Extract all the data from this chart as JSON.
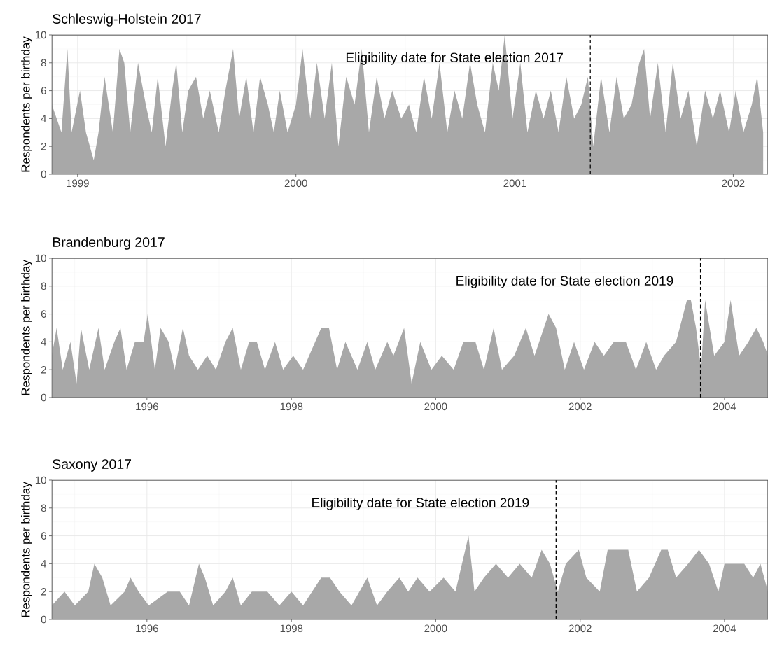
{
  "chart_data": [
    {
      "type": "area",
      "title": "Schleswig-Holstein 2017",
      "ylabel": "Respondents per birthday",
      "color": "#a8a8a8",
      "grid": true,
      "xlim": [
        "1998-11-19",
        "2002-02-28"
      ],
      "ylim": [
        0,
        10
      ],
      "yticks": [
        0,
        2,
        4,
        6,
        8,
        10
      ],
      "xticks": [
        {
          "value": "1999-01-01",
          "label": "1999"
        },
        {
          "value": "2000-01-01",
          "label": "2000"
        },
        {
          "value": "2001-01-01",
          "label": "2001"
        },
        {
          "value": "2002-01-01",
          "label": "2002"
        }
      ],
      "ref_lines": [
        {
          "axis": "x",
          "value": "2001-05-07",
          "label": "Eligibility date for State election 2017",
          "color": "#000000",
          "line_style": "dashed"
        }
      ],
      "x": [
        "1998-11-19",
        "1998-12-05",
        "1998-12-15",
        "1998-12-22",
        "1999-01-05",
        "1999-01-15",
        "1999-01-28",
        "1999-02-05",
        "1999-02-15",
        "1999-03-01",
        "1999-03-12",
        "1999-03-20",
        "1999-03-30",
        "1999-04-12",
        "1999-04-25",
        "1999-05-05",
        "1999-05-15",
        "1999-05-28",
        "1999-06-08",
        "1999-06-15",
        "1999-06-25",
        "1999-07-05",
        "1999-07-18",
        "1999-07-30",
        "1999-08-10",
        "1999-08-25",
        "1999-09-05",
        "1999-09-18",
        "1999-09-28",
        "1999-10-10",
        "1999-10-22",
        "1999-11-02",
        "1999-11-15",
        "1999-11-25",
        "1999-12-05",
        "1999-12-18",
        "2000-01-01",
        "2000-01-12",
        "2000-01-25",
        "2000-02-05",
        "2000-02-18",
        "2000-03-01",
        "2000-03-12",
        "2000-03-25",
        "2000-04-08",
        "2000-04-20",
        "2000-05-02",
        "2000-05-15",
        "2000-05-28",
        "2000-06-10",
        "2000-06-25",
        "2000-07-08",
        "2000-07-20",
        "2000-08-02",
        "2000-08-15",
        "2000-08-28",
        "2000-09-10",
        "2000-09-22",
        "2000-10-05",
        "2000-10-18",
        "2000-10-30",
        "2000-11-12",
        "2000-11-25",
        "2000-12-05",
        "2000-12-15",
        "2000-12-28",
        "2001-01-10",
        "2001-01-22",
        "2001-02-05",
        "2001-02-18",
        "2001-03-02",
        "2001-03-15",
        "2001-03-28",
        "2001-04-10",
        "2001-04-22",
        "2001-05-03",
        "2001-05-12",
        "2001-05-25",
        "2001-06-08",
        "2001-06-20",
        "2001-07-02",
        "2001-07-15",
        "2001-07-28",
        "2001-08-05",
        "2001-08-15",
        "2001-08-28",
        "2001-09-10",
        "2001-09-22",
        "2001-10-05",
        "2001-10-18",
        "2001-11-01",
        "2001-11-15",
        "2001-11-28",
        "2001-12-10",
        "2001-12-25",
        "2002-01-05",
        "2002-01-18",
        "2002-02-01",
        "2002-02-10",
        "2002-02-20"
      ],
      "values": [
        5,
        3,
        9,
        3,
        6,
        3,
        1,
        3,
        7,
        3,
        9,
        8,
        3,
        8,
        5,
        3,
        7,
        2,
        6,
        8,
        3,
        6,
        7,
        4,
        6,
        3,
        6,
        9,
        4,
        7,
        3,
        7,
        5,
        3,
        6,
        3,
        5,
        9,
        4,
        8,
        4,
        8,
        2,
        7,
        5,
        9,
        3,
        7,
        4,
        6,
        4,
        5,
        3,
        7,
        4,
        8,
        3,
        6,
        4,
        8,
        5,
        3,
        8,
        6,
        10,
        4,
        8,
        3,
        6,
        4,
        6,
        3,
        7,
        4,
        5,
        7,
        2,
        7,
        3,
        7,
        4,
        5,
        8,
        9,
        4,
        8,
        3,
        8,
        4,
        6,
        2,
        6,
        4,
        6,
        3,
        6,
        3,
        5,
        7,
        3
      ]
    },
    {
      "type": "area",
      "title": "Brandenburg 2017",
      "ylabel": "Respondents per birthday",
      "color": "#a8a8a8",
      "grid": true,
      "xlim": [
        "1994-09-07",
        "2004-08-08"
      ],
      "ylim": [
        0,
        10
      ],
      "yticks": [
        0,
        2,
        4,
        6,
        8,
        10
      ],
      "xticks": [
        {
          "value": "1996-01-01",
          "label": "1996"
        },
        {
          "value": "1998-01-01",
          "label": "1998"
        },
        {
          "value": "2000-01-01",
          "label": "2000"
        },
        {
          "value": "2002-01-01",
          "label": "2002"
        },
        {
          "value": "2004-01-01",
          "label": "2004"
        }
      ],
      "ref_lines": [
        {
          "axis": "x",
          "value": "2003-09-01",
          "label": "Eligibility date for State election 2019",
          "color": "#000000",
          "line_style": "dashed"
        }
      ],
      "x": [
        "1994-09-07",
        "1994-10-01",
        "1994-11-01",
        "1994-12-10",
        "1995-01-10",
        "1995-02-01",
        "1995-03-15",
        "1995-05-01",
        "1995-06-01",
        "1995-07-20",
        "1995-08-20",
        "1995-09-20",
        "1995-11-01",
        "1995-12-15",
        "1996-01-05",
        "1996-02-10",
        "1996-03-10",
        "1996-04-20",
        "1996-05-20",
        "1996-07-01",
        "1996-08-01",
        "1996-09-15",
        "1996-11-01",
        "1996-12-15",
        "1997-02-01",
        "1997-03-10",
        "1997-04-20",
        "1997-06-01",
        "1997-07-10",
        "1997-08-20",
        "1997-10-10",
        "1997-11-20",
        "1998-01-10",
        "1998-03-01",
        "1998-05-01",
        "1998-06-01",
        "1998-07-10",
        "1998-08-20",
        "1998-10-01",
        "1998-12-01",
        "1999-01-20",
        "1999-03-01",
        "1999-05-01",
        "1999-06-01",
        "1999-07-25",
        "1999-09-01",
        "1999-10-15",
        "1999-12-10",
        "2000-02-01",
        "2000-04-01",
        "2000-05-20",
        "2000-07-20",
        "2000-09-01",
        "2000-10-20",
        "2000-12-01",
        "2001-02-01",
        "2001-04-01",
        "2001-05-15",
        "2001-07-25",
        "2001-09-01",
        "2001-10-15",
        "2001-12-01",
        "2002-01-20",
        "2002-03-15",
        "2002-05-01",
        "2002-06-20",
        "2002-08-20",
        "2002-10-10",
        "2002-12-01",
        "2003-01-20",
        "2003-03-01",
        "2003-05-01",
        "2003-06-25",
        "2003-07-15",
        "2003-08-10",
        "2003-09-05",
        "2003-09-25",
        "2003-11-10",
        "2004-01-01",
        "2004-02-01",
        "2004-03-15",
        "2004-05-01",
        "2004-06-10",
        "2004-07-15",
        "2004-08-08"
      ],
      "values": [
        3,
        5,
        2,
        4,
        1,
        5,
        2,
        5,
        2,
        4,
        5,
        2,
        4,
        4,
        6,
        2,
        5,
        4,
        2,
        5,
        3,
        2,
        3,
        2,
        4,
        5,
        2,
        4,
        4,
        2,
        4,
        2,
        3,
        2,
        4,
        5,
        5,
        2,
        4,
        2,
        4,
        2,
        4,
        3,
        5,
        1,
        4,
        2,
        3,
        2,
        4,
        4,
        2,
        5,
        2,
        3,
        5,
        3,
        6,
        5,
        2,
        4,
        2,
        4,
        3,
        4,
        4,
        2,
        4,
        2,
        3,
        4,
        7,
        7,
        5,
        2,
        7,
        3,
        4,
        7,
        3,
        4,
        5,
        4,
        3
      ]
    },
    {
      "type": "area",
      "title": "Saxony 2017",
      "ylabel": "Respondents per birthday",
      "color": "#a8a8a8",
      "grid": true,
      "xlim": [
        "1994-09-07",
        "2004-08-08"
      ],
      "ylim": [
        0,
        10
      ],
      "yticks": [
        0,
        2,
        4,
        6,
        8,
        10
      ],
      "xticks": [
        {
          "value": "1996-01-01",
          "label": "1996"
        },
        {
          "value": "1998-01-01",
          "label": "1998"
        },
        {
          "value": "2000-01-01",
          "label": "2000"
        },
        {
          "value": "2002-01-01",
          "label": "2002"
        },
        {
          "value": "2004-01-01",
          "label": "2004"
        }
      ],
      "ref_lines": [
        {
          "axis": "x",
          "value": "2001-09-01",
          "label": "Eligibility date for State election 2019",
          "color": "#000000",
          "line_style": "dashed"
        }
      ],
      "x": [
        "1994-09-07",
        "1994-11-10",
        "1995-01-01",
        "1995-03-10",
        "1995-04-10",
        "1995-05-20",
        "1995-07-01",
        "1995-09-10",
        "1995-10-10",
        "1995-11-20",
        "1996-01-10",
        "1996-04-15",
        "1996-06-15",
        "1996-08-01",
        "1996-09-20",
        "1996-10-20",
        "1996-12-01",
        "1997-02-01",
        "1997-03-10",
        "1997-04-20",
        "1997-06-15",
        "1997-09-01",
        "1997-11-01",
        "1998-01-01",
        "1998-03-01",
        "1998-06-01",
        "1998-07-15",
        "1998-09-01",
        "1998-11-01",
        "1999-01-20",
        "1999-03-10",
        "1999-05-01",
        "1999-07-01",
        "1999-08-15",
        "1999-10-01",
        "1999-12-01",
        "2000-02-10",
        "2000-04-10",
        "2000-06-15",
        "2000-07-15",
        "2000-09-01",
        "2000-11-01",
        "2001-01-01",
        "2001-03-01",
        "2001-05-01",
        "2001-06-20",
        "2001-08-01",
        "2001-09-10",
        "2001-10-20",
        "2001-12-25",
        "2002-02-01",
        "2002-04-10",
        "2002-05-20",
        "2002-07-10",
        "2002-09-01",
        "2002-10-15",
        "2002-12-15",
        "2003-02-15",
        "2003-03-20",
        "2003-05-01",
        "2003-07-01",
        "2003-08-25",
        "2003-10-15",
        "2003-12-01",
        "2004-01-01",
        "2004-02-20",
        "2004-04-10",
        "2004-05-25",
        "2004-07-01",
        "2004-08-08"
      ],
      "values": [
        1,
        2,
        1,
        2,
        4,
        3,
        1,
        2,
        3,
        2,
        1,
        2,
        2,
        1,
        4,
        3,
        1,
        2,
        3,
        1,
        2,
        2,
        1,
        2,
        1,
        3,
        3,
        2,
        1,
        3,
        1,
        2,
        3,
        2,
        3,
        2,
        3,
        2,
        6,
        2,
        3,
        4,
        3,
        4,
        3,
        5,
        4,
        2,
        4,
        5,
        3,
        2,
        5,
        5,
        5,
        2,
        3,
        5,
        5,
        3,
        4,
        5,
        4,
        2,
        4,
        4,
        4,
        3,
        4,
        2
      ]
    }
  ]
}
